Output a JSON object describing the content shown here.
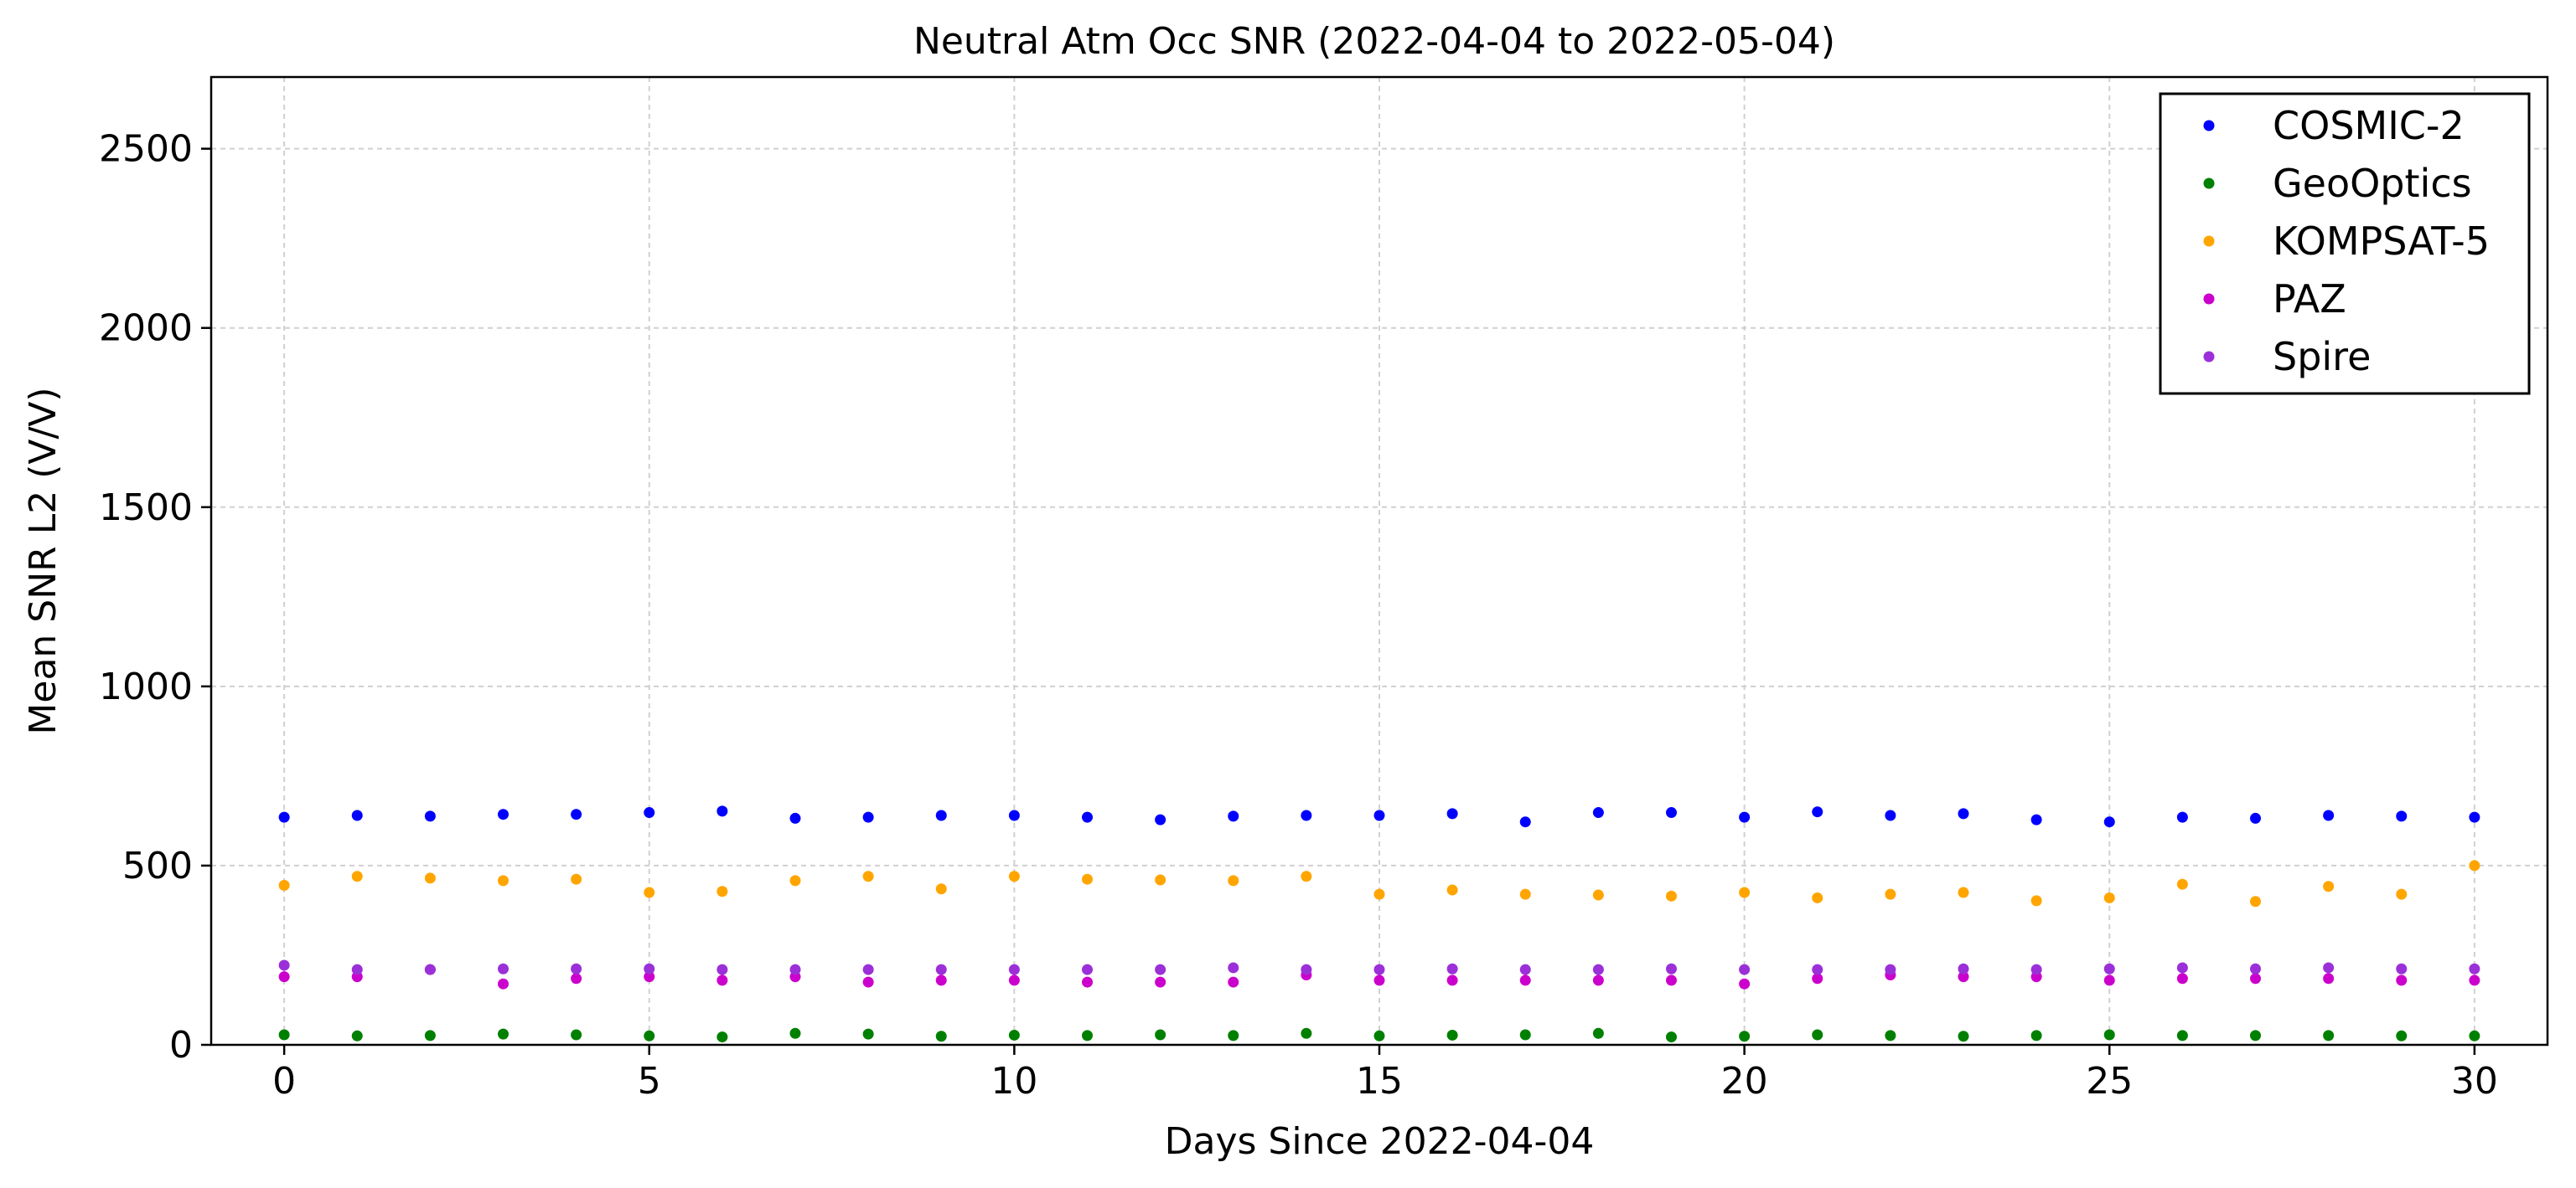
{
  "chart_data": {
    "type": "scatter",
    "title": "Neutral Atm Occ SNR (2022-04-04 to 2022-05-04)",
    "xlabel": "Days Since 2022-04-04",
    "ylabel": "Mean SNR L2 (V/V)",
    "xlim": [
      -1,
      31
    ],
    "ylim": [
      0,
      2700
    ],
    "xticks": [
      0,
      5,
      10,
      15,
      20,
      25,
      30
    ],
    "yticks": [
      0,
      500,
      1000,
      1500,
      2000,
      2500
    ],
    "grid": true,
    "legend_position": "top-right",
    "x": [
      0,
      1,
      2,
      3,
      4,
      5,
      6,
      7,
      8,
      9,
      10,
      11,
      12,
      13,
      14,
      15,
      16,
      17,
      18,
      19,
      20,
      21,
      22,
      23,
      24,
      25,
      26,
      27,
      28,
      29,
      30
    ],
    "series": [
      {
        "name": "COSMIC-2",
        "color": "#0000ff",
        "values": [
          635,
          640,
          638,
          643,
          643,
          648,
          652,
          632,
          635,
          640,
          640,
          635,
          628,
          638,
          640,
          640,
          645,
          622,
          648,
          648,
          635,
          650,
          640,
          645,
          628,
          622,
          635,
          632,
          640,
          638,
          635
        ]
      },
      {
        "name": "GeoOptics",
        "color": "#008000",
        "values": [
          28,
          25,
          26,
          30,
          28,
          25,
          22,
          32,
          30,
          24,
          27,
          26,
          28,
          26,
          32,
          25,
          27,
          28,
          32,
          22,
          24,
          28,
          26,
          24,
          26,
          28,
          26,
          26,
          26,
          25,
          25
        ]
      },
      {
        "name": "KOMPSAT-5",
        "color": "#ffa500",
        "values": [
          445,
          470,
          465,
          458,
          462,
          425,
          428,
          458,
          470,
          435,
          470,
          462,
          460,
          458,
          470,
          420,
          432,
          420,
          418,
          415,
          425,
          410,
          420,
          425,
          402,
          410,
          448,
          400,
          442,
          420,
          500
        ]
      },
      {
        "name": "PAZ",
        "color": "#cc00cc",
        "values": [
          190,
          190,
          210,
          170,
          185,
          190,
          180,
          190,
          175,
          180,
          180,
          175,
          175,
          175,
          195,
          180,
          180,
          180,
          180,
          180,
          170,
          185,
          195,
          190,
          190,
          180,
          185,
          185,
          185,
          180,
          180
        ]
      },
      {
        "name": "Spire",
        "color": "#9b30d9",
        "values": [
          222,
          210,
          210,
          212,
          212,
          212,
          210,
          210,
          210,
          210,
          210,
          210,
          210,
          215,
          210,
          210,
          212,
          210,
          210,
          212,
          210,
          210,
          210,
          212,
          210,
          212,
          215,
          212,
          215,
          212,
          212
        ]
      }
    ]
  }
}
